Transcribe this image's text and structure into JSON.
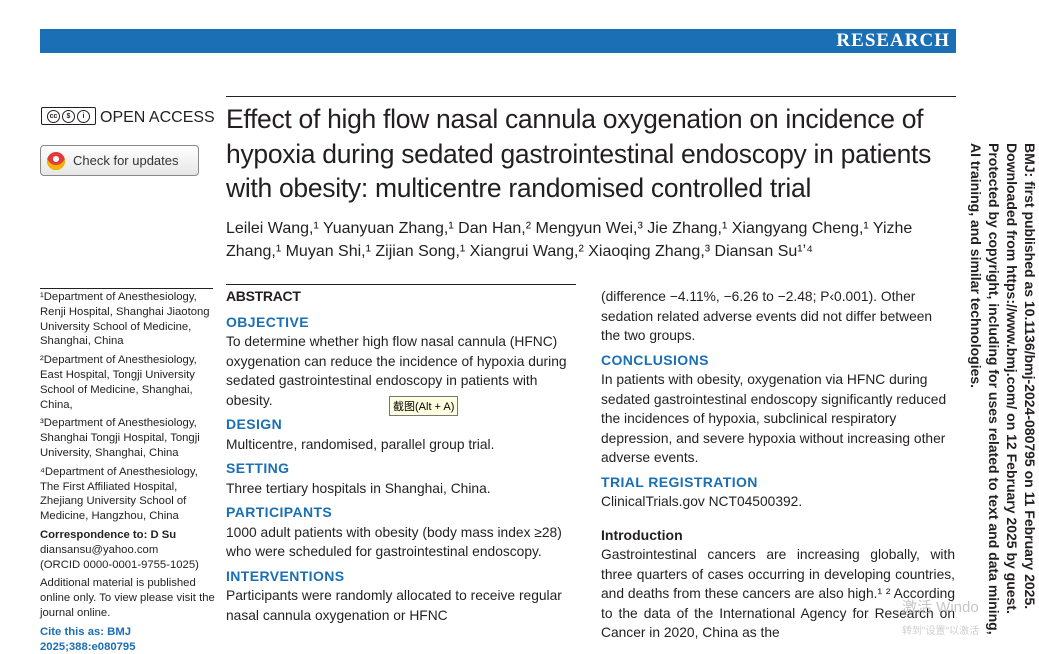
{
  "banner": {
    "label": "RESEARCH"
  },
  "open_access": {
    "cc_text": "BY NC",
    "label": "OPEN ACCESS"
  },
  "check_updates": {
    "label": "Check for updates"
  },
  "title": "Effect of high flow nasal cannula oxygenation on incidence of hypoxia during sedated gastrointestinal endoscopy in patients with obesity: multicentre randomised controlled trial",
  "authors": "Leilei Wang,¹ Yuanyuan Zhang,¹ Dan Han,² Mengyun Wei,³ Jie Zhang,¹ Xiangyang Cheng,¹ Yizhe Zhang,¹ Muyan Shi,¹ Zijian Song,¹ Xiangrui Wang,² Xiaoqing Zhang,³ Diansan Su¹ʼ⁴",
  "affiliations": [
    "¹Department of Anesthesiology, Renji Hospital, Shanghai Jiaotong University School of Medicine, Shanghai, China",
    "²Department of Anesthesiology, East Hospital, Tongji University School of Medicine, Shanghai, China,",
    "³Department of Anesthesiology, Shanghai Tongji Hospital, Tongji University, Shanghai, China",
    "⁴Department of Anesthesiology, The First Affiliated Hospital, Zhejiang University School of Medicine, Hangzhou, China"
  ],
  "correspondence": {
    "heading": "Correspondence to: D Su",
    "email": "diansansu@yahoo.com",
    "orcid": "(ORCID 0000-0001-9755-1025)"
  },
  "additional": "Additional material is published online only. To view please visit the journal online.",
  "cite": "Cite this as: BMJ 2025;388:e080795",
  "abstract": {
    "heading": "ABSTRACT",
    "sections": [
      {
        "heading": "OBJECTIVE",
        "text": "To determine whether high flow nasal cannula (HFNC) oxygenation can reduce the incidence of hypoxia during sedated gastrointestinal endoscopy in patients with obesity."
      },
      {
        "heading": "DESIGN",
        "text": "Multicentre, randomised, parallel group trial."
      },
      {
        "heading": "SETTING",
        "text": "Three tertiary hospitals in Shanghai, China."
      },
      {
        "heading": "PARTICIPANTS",
        "text": "1000 adult patients with obesity (body mass index ≥28) who were scheduled for gastrointestinal endoscopy."
      },
      {
        "heading": "INTERVENTIONS",
        "text": "Participants were randomly allocated to receive regular nasal cannula oxygenation or HFNC"
      }
    ]
  },
  "right_col": {
    "continued": "(difference −4.11%, −6.26 to −2.48; P‹0.001). Other sedation related adverse events did not differ between the two groups.",
    "conclusions_heading": "CONCLUSIONS",
    "conclusions_text": "In patients with obesity, oxygenation via HFNC during sedated gastrointestinal endoscopy significantly reduced the incidences of hypoxia, subclinical respiratory depression, and severe hypoxia without increasing other adverse events.",
    "trial_heading": "TRIAL REGISTRATION",
    "trial_text": "ClinicalTrials.gov NCT04500392.",
    "intro_heading": "Introduction",
    "intro_text": "Gastrointestinal cancers are increasing globally, with three quarters of cases occurring in developing countries, and deaths from these cancers are also high.¹ ² According to the data of the International Agency for Research on Cancer in 2020, China as the"
  },
  "tooltip": "截图(Alt + A)",
  "side_note": "BMJ: first published as 10.1136/bmj-2024-080795 on 11 February 2025. Downloaded from https://www.bmj.com/ on 12 February 2025 by guest. Protected by copyright, including for uses related to text and data mining, AI training, and similar technologies.",
  "watermark": {
    "line1": "激活 Windo",
    "line2": "转到\"设置\"以激活"
  },
  "colors": {
    "accent": "#1a6fb5",
    "text": "#231f20"
  }
}
